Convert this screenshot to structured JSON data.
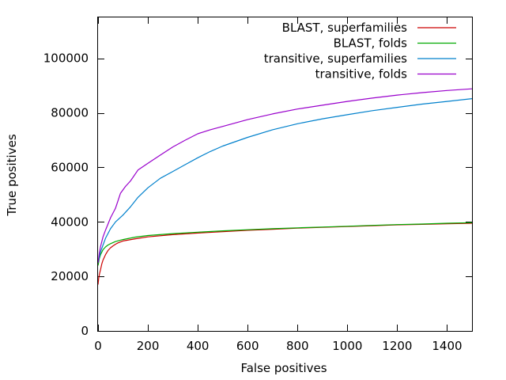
{
  "chart_data": {
    "type": "line",
    "title": "",
    "xlabel": "False positives",
    "ylabel": "True positives",
    "xlim": [
      0,
      1500
    ],
    "ylim": [
      0,
      115000
    ],
    "xticks": [
      0,
      200,
      400,
      600,
      800,
      1000,
      1200,
      1400
    ],
    "yticks": [
      0,
      20000,
      40000,
      60000,
      80000,
      100000
    ],
    "grid": false,
    "legend_position": "top-right",
    "series": [
      {
        "name": "BLAST, superfamilies",
        "color": "#cc0000",
        "x": [
          0,
          3,
          6,
          10,
          15,
          20,
          30,
          40,
          50,
          60,
          70,
          80,
          100,
          150,
          200,
          300,
          400,
          500,
          600,
          700,
          800,
          900,
          1000,
          1100,
          1200,
          1300,
          1400,
          1500
        ],
        "y": [
          17000,
          19500,
          21000,
          22500,
          24500,
          26000,
          28000,
          29500,
          30500,
          31200,
          31800,
          32300,
          33000,
          33800,
          34500,
          35300,
          35900,
          36400,
          36900,
          37300,
          37700,
          38000,
          38300,
          38600,
          38900,
          39100,
          39300,
          39500
        ]
      },
      {
        "name": "BLAST, folds",
        "color": "#00aa00",
        "x": [
          0,
          5,
          10,
          20,
          30,
          40,
          50,
          70,
          100,
          150,
          200,
          300,
          400,
          500,
          600,
          700,
          800,
          900,
          1000,
          1100,
          1200,
          1300,
          1400,
          1500
        ],
        "y": [
          24000,
          26500,
          28000,
          29800,
          30800,
          31500,
          32000,
          32800,
          33500,
          34400,
          35000,
          35700,
          36200,
          36700,
          37100,
          37500,
          37800,
          38100,
          38400,
          38700,
          39000,
          39200,
          39500,
          39700
        ]
      },
      {
        "name": "transitive, superfamilies",
        "color": "#0080cc",
        "x": [
          0,
          10,
          20,
          30,
          50,
          70,
          100,
          130,
          160,
          200,
          250,
          300,
          350,
          400,
          450,
          500,
          600,
          700,
          800,
          900,
          1000,
          1100,
          1200,
          1300,
          1400,
          1500
        ],
        "y": [
          25000,
          29000,
          31500,
          34000,
          37500,
          40000,
          42500,
          45500,
          49000,
          52500,
          56000,
          58500,
          61000,
          63500,
          65800,
          67800,
          71000,
          73800,
          76000,
          77800,
          79300,
          80800,
          82000,
          83200,
          84200,
          85200
        ]
      },
      {
        "name": "transitive, folds",
        "color": "#9900cc",
        "x": [
          0,
          5,
          10,
          20,
          30,
          50,
          70,
          90,
          110,
          130,
          160,
          200,
          250,
          300,
          350,
          400,
          450,
          500,
          600,
          700,
          800,
          900,
          1000,
          1100,
          1200,
          1300,
          1400,
          1500
        ],
        "y": [
          25000,
          28500,
          31000,
          34500,
          37000,
          41500,
          45000,
          50500,
          53000,
          55000,
          59000,
          61500,
          64500,
          67500,
          70000,
          72300,
          73800,
          75000,
          77500,
          79600,
          81400,
          82800,
          84200,
          85400,
          86500,
          87400,
          88200,
          88800
        ]
      }
    ]
  }
}
